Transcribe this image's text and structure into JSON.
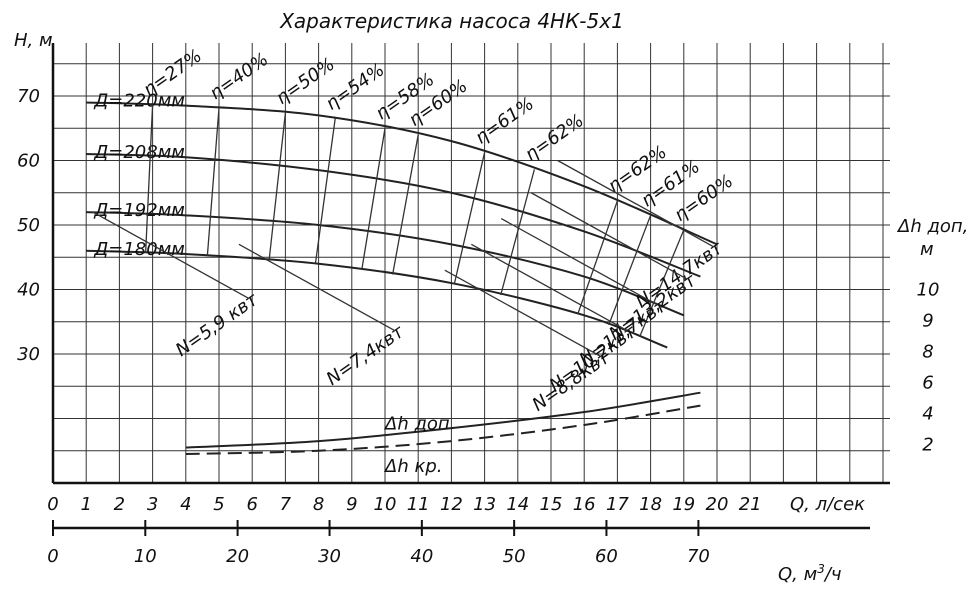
{
  "chart_data": {
    "type": "line",
    "title": "Характеристика насоса 4НК-5х1",
    "ylabel": "Н, м",
    "xlabel_primary": "Q, л/сек",
    "xlabel_secondary": "Q, м³/ч",
    "xlabel_secondary_base": "Q, м",
    "xlabel_secondary_sup": "3",
    "xlabel_secondary_tail": "/ч",
    "right_axis_title_line1": "Δh доп,",
    "right_axis_title_line2": "м",
    "xlim": [
      0,
      23.5
    ],
    "ylim": [
      8,
      80
    ],
    "x_ticks": [
      "0",
      "1",
      "2",
      "3",
      "4",
      "5",
      "6",
      "7",
      "8",
      "9",
      "10",
      "11",
      "12",
      "13",
      "14",
      "15",
      "16",
      "17",
      "18",
      "19",
      "20",
      "21"
    ],
    "x2_ticks": [
      {
        "q_lps": 0,
        "label": "0"
      },
      {
        "q_lps": 2.78,
        "label": "10"
      },
      {
        "q_lps": 5.56,
        "label": "20"
      },
      {
        "q_lps": 8.33,
        "label": "30"
      },
      {
        "q_lps": 11.11,
        "label": "40"
      },
      {
        "q_lps": 13.89,
        "label": "50"
      },
      {
        "q_lps": 16.67,
        "label": "60"
      },
      {
        "q_lps": 19.44,
        "label": "70"
      }
    ],
    "y_ticks": [
      "70",
      "60",
      "50",
      "40",
      "30"
    ],
    "right_ticks": [
      {
        "h": 40,
        "label": "10"
      },
      {
        "h": 35.2,
        "label": "9"
      },
      {
        "h": 30.4,
        "label": "8"
      },
      {
        "h": 25.6,
        "label": "6"
      },
      {
        "h": 20.8,
        "label": "4"
      },
      {
        "h": 16,
        "label": "2"
      }
    ],
    "series": [
      {
        "name": "Д=220мм",
        "x": [
          1,
          4,
          8,
          12,
          16,
          20
        ],
        "y": [
          69,
          68.5,
          67,
          63,
          56,
          47
        ]
      },
      {
        "name": "Д=208мм",
        "x": [
          1,
          4,
          8,
          12,
          16,
          19.5
        ],
        "y": [
          61,
          60.5,
          58.5,
          55,
          49,
          42
        ]
      },
      {
        "name": "Д=192мм",
        "x": [
          1,
          4,
          8,
          12,
          16,
          19
        ],
        "y": [
          52,
          51.5,
          50,
          47,
          42,
          36
        ]
      },
      {
        "name": "Д=180мм",
        "x": [
          1,
          4,
          8,
          12,
          16,
          18.5
        ],
        "y": [
          46,
          45.5,
          44,
          41,
          36,
          31
        ]
      }
    ],
    "efficiency_labels": [
      "η=27%",
      "η=40%",
      "η=50%",
      "η=54%",
      "η=58%",
      "η=60%",
      "η=61%",
      "η=62%",
      "η=62%",
      "η=61%",
      "η=60%"
    ],
    "power_labels": [
      "N=5,9 квт",
      "N=7,4квт",
      "N=14,7квт",
      "N=13,2квт",
      "N=11,7квт",
      "N=10,2квт",
      "N=8,8квт"
    ],
    "npsh_curves": [
      {
        "name": "Δh доп",
        "x": [
          4,
          8,
          12,
          16,
          19.5
        ],
        "y": [
          15.5,
          16.5,
          18.5,
          21,
          24
        ]
      },
      {
        "name": "Δh кр.",
        "x": [
          4,
          8,
          12,
          16,
          19.5
        ],
        "y": [
          14.5,
          15,
          16.5,
          19,
          22
        ]
      }
    ],
    "grid": true
  }
}
